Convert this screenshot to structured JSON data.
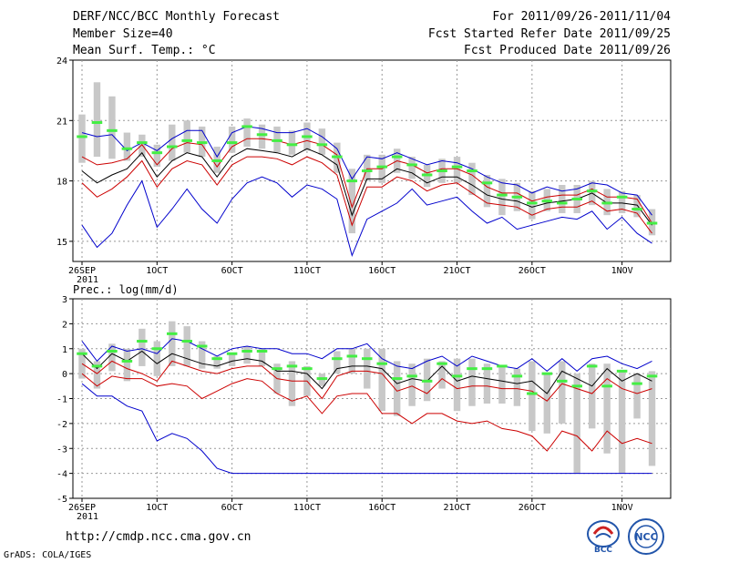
{
  "header": {
    "title": "DERF/NCC/BCC Monthly Forecast",
    "member_size": "Member Size=40",
    "variable": "Mean Surf. Temp.: °C",
    "period": "For 2011/09/26-2011/11/04",
    "start_date": "Fcst Started Refer Date 2011/09/25",
    "produced_date": "Fcst Produced Date 2011/09/26"
  },
  "footer": {
    "url": "http://cmdp.ncc.cma.gov.cn",
    "grads": "GrADS: COLA/IGES",
    "logo1_text": "BCC",
    "logo2_text": "NCC"
  },
  "colors": {
    "envelope": "#0000cc",
    "ensemble_range": "#cc0000",
    "mean": "#000000",
    "bar": "#c8c8c8",
    "marker": "#44ee44",
    "grid": "#999999"
  },
  "chart_data": [
    {
      "type": "line",
      "title": "Mean Surf. Temp.: °C",
      "ylim": [
        14,
        24
      ],
      "yticks": [
        15,
        18,
        21,
        24
      ],
      "xtick_labels": [
        "26SEP",
        "1OCT",
        "6OCT",
        "11OCT",
        "16OCT",
        "21OCT",
        "26OCT",
        "1NOV"
      ],
      "xtick_days": [
        1,
        6,
        11,
        16,
        21,
        26,
        31,
        37
      ],
      "year_label": "2011",
      "grid": true,
      "series": [
        {
          "name": "max",
          "values": [
            20.4,
            20.2,
            20.3,
            19.5,
            19.9,
            19.5,
            20.1,
            20.5,
            20.5,
            19.2,
            20.4,
            20.7,
            20.6,
            20.4,
            20.4,
            20.6,
            20.2,
            19.6,
            18.1,
            19.2,
            19.1,
            19.4,
            19.1,
            18.8,
            19.0,
            18.9,
            18.6,
            18.2,
            17.9,
            17.8,
            17.4,
            17.7,
            17.5,
            17.6,
            17.9,
            17.8,
            17.4,
            17.3,
            16.3
          ]
        },
        {
          "name": "upper",
          "values": [
            19.2,
            18.8,
            18.9,
            19.1,
            19.8,
            18.8,
            19.6,
            19.9,
            19.8,
            18.7,
            19.7,
            20.1,
            20.1,
            20.0,
            19.8,
            20.0,
            19.8,
            19.3,
            16.7,
            18.6,
            18.6,
            19.0,
            18.8,
            18.4,
            18.6,
            18.6,
            18.3,
            17.7,
            17.4,
            17.4,
            17.0,
            17.2,
            17.3,
            17.3,
            17.6,
            17.2,
            17.2,
            17.1,
            15.9
          ]
        },
        {
          "name": "mean",
          "values": [
            18.5,
            17.9,
            18.3,
            18.6,
            19.4,
            18.2,
            19.0,
            19.4,
            19.2,
            18.2,
            19.2,
            19.6,
            19.5,
            19.4,
            19.2,
            19.6,
            19.3,
            18.8,
            16.3,
            18.1,
            18.1,
            18.6,
            18.4,
            17.9,
            18.2,
            18.2,
            17.8,
            17.3,
            17.1,
            17.0,
            16.7,
            16.9,
            17.0,
            17.1,
            17.4,
            16.9,
            16.9,
            16.8,
            15.8
          ]
        },
        {
          "name": "lower",
          "values": [
            17.9,
            17.2,
            17.6,
            18.2,
            19.0,
            17.7,
            18.6,
            19.0,
            18.8,
            17.8,
            18.8,
            19.2,
            19.2,
            19.1,
            18.8,
            19.2,
            18.9,
            18.3,
            15.8,
            17.7,
            17.7,
            18.2,
            18.0,
            17.5,
            17.8,
            17.9,
            17.4,
            16.9,
            16.8,
            16.7,
            16.3,
            16.6,
            16.7,
            16.7,
            17.0,
            16.5,
            16.6,
            16.4,
            15.4
          ]
        },
        {
          "name": "min",
          "values": [
            15.8,
            14.7,
            15.4,
            16.8,
            18.0,
            15.7,
            16.6,
            17.6,
            16.6,
            15.9,
            17.1,
            17.9,
            18.2,
            17.9,
            17.2,
            17.8,
            17.6,
            17.1,
            14.3,
            16.1,
            16.5,
            16.9,
            17.6,
            16.8,
            17.0,
            17.2,
            16.5,
            15.9,
            16.2,
            15.6,
            15.8,
            16.0,
            16.2,
            16.1,
            16.5,
            15.6,
            16.2,
            15.4,
            14.9
          ]
        },
        {
          "name": "bar_top",
          "values": [
            21.3,
            22.9,
            22.2,
            20.4,
            20.3,
            19.8,
            20.8,
            21.0,
            20.7,
            19.7,
            20.7,
            21.1,
            20.8,
            20.7,
            20.5,
            20.9,
            20.6,
            19.9,
            18.6,
            19.3,
            19.3,
            19.6,
            19.2,
            18.8,
            19.1,
            19.2,
            18.9,
            18.3,
            18.1,
            17.9,
            17.5,
            17.6,
            17.8,
            17.8,
            18.0,
            17.6,
            17.5,
            17.3,
            16.6
          ]
        },
        {
          "name": "bar_bottom",
          "values": [
            18.9,
            19.2,
            19.1,
            19.0,
            19.2,
            18.7,
            19.0,
            19.4,
            19.2,
            18.4,
            19.4,
            19.7,
            19.6,
            19.4,
            19.3,
            19.5,
            19.3,
            18.4,
            15.4,
            18.0,
            17.9,
            18.4,
            18.1,
            17.7,
            17.9,
            17.9,
            17.3,
            16.7,
            16.3,
            16.5,
            16.1,
            16.5,
            16.4,
            16.4,
            16.8,
            16.3,
            16.4,
            16.2,
            15.3
          ]
        },
        {
          "name": "marker",
          "values": [
            20.2,
            20.9,
            20.5,
            19.6,
            19.9,
            19.4,
            19.7,
            20.0,
            19.9,
            19.0,
            19.9,
            20.7,
            20.3,
            20.0,
            19.8,
            20.2,
            19.8,
            19.2,
            18.0,
            18.5,
            18.7,
            19.2,
            18.8,
            18.3,
            18.5,
            18.7,
            18.5,
            17.9,
            17.3,
            17.2,
            16.9,
            17.0,
            16.9,
            17.1,
            17.5,
            16.9,
            17.2,
            16.6,
            15.9
          ]
        }
      ]
    },
    {
      "type": "line",
      "title": "Prec.: log(mm/d)",
      "ylim": [
        -5,
        3
      ],
      "yticks": [
        -5,
        -4,
        -3,
        -2,
        -1,
        0,
        1,
        2,
        3
      ],
      "xtick_labels": [
        "26SEP",
        "1OCT",
        "6OCT",
        "11OCT",
        "16OCT",
        "21OCT",
        "26OCT",
        "1NOV"
      ],
      "xtick_days": [
        1,
        6,
        11,
        16,
        21,
        26,
        31,
        37
      ],
      "year_label": "2011",
      "grid": true,
      "series": [
        {
          "name": "max",
          "values": [
            1.3,
            0.5,
            1.1,
            0.9,
            1.0,
            0.8,
            1.4,
            1.3,
            1.0,
            0.7,
            1.0,
            1.1,
            1.0,
            1.0,
            0.8,
            0.8,
            0.6,
            1.0,
            1.0,
            1.2,
            0.6,
            0.3,
            0.2,
            0.5,
            0.7,
            0.3,
            0.7,
            0.5,
            0.3,
            0.2,
            0.6,
            0.1,
            0.6,
            0.1,
            0.6,
            0.7,
            0.4,
            0.2,
            0.5
          ]
        },
        {
          "name": "mean",
          "values": [
            0.8,
            0.2,
            0.8,
            0.5,
            0.9,
            0.4,
            0.8,
            0.6,
            0.4,
            0.3,
            0.5,
            0.6,
            0.5,
            0.1,
            0.1,
            0.0,
            -0.6,
            0.2,
            0.3,
            0.3,
            0.2,
            -0.4,
            -0.2,
            -0.3,
            0.3,
            -0.3,
            -0.1,
            -0.2,
            -0.3,
            -0.4,
            -0.3,
            -0.8,
            0.1,
            -0.2,
            -0.5,
            0.2,
            -0.3,
            0.0,
            -0.3
          ]
        },
        {
          "name": "lower_red",
          "values": [
            0.4,
            0.0,
            0.5,
            0.2,
            0.0,
            -0.3,
            0.5,
            0.3,
            0.1,
            0.0,
            0.2,
            0.3,
            0.3,
            -0.2,
            -0.3,
            -0.3,
            -1.0,
            -0.1,
            0.1,
            0.1,
            0.0,
            -0.7,
            -0.5,
            -0.8,
            -0.2,
            -0.6,
            -0.5,
            -0.5,
            -0.6,
            -0.6,
            -0.7,
            -1.1,
            -0.4,
            -0.6,
            -0.8,
            -0.2,
            -0.6,
            -0.8,
            -0.6
          ]
        },
        {
          "name": "min_red",
          "values": [
            0.0,
            -0.5,
            -0.1,
            -0.2,
            -0.2,
            -0.5,
            -0.4,
            -0.5,
            -1.0,
            -0.7,
            -0.4,
            -0.2,
            -0.3,
            -0.8,
            -1.1,
            -0.9,
            -1.6,
            -0.9,
            -0.8,
            -0.8,
            -1.6,
            -1.6,
            -2.0,
            -1.6,
            -1.6,
            -1.9,
            -2.0,
            -1.9,
            -2.2,
            -2.3,
            -2.5,
            -3.1,
            -2.3,
            -2.5,
            -3.1,
            -2.3,
            -2.8,
            -2.6,
            -2.8
          ]
        },
        {
          "name": "min_blue",
          "values": [
            -0.4,
            -0.9,
            -0.9,
            -1.3,
            -1.5,
            -2.7,
            -2.4,
            -2.6,
            -3.1,
            -3.8,
            -4.0,
            -4.0,
            -4.0,
            -4.0,
            -4.0,
            -4.0,
            -4.0,
            -4.0,
            -4.0,
            -4.0,
            -4.0,
            -4.0,
            -4.0,
            -4.0,
            -4.0,
            -4.0,
            -4.0,
            -4.0,
            -4.0,
            -4.0,
            -4.0,
            -4.0,
            -4.0,
            -4.0,
            -4.0,
            -4.0,
            -4.0,
            -4.0,
            -4.0
          ]
        },
        {
          "name": "bar_top",
          "values": [
            1.0,
            0.5,
            1.2,
            1.0,
            1.8,
            1.3,
            2.1,
            1.9,
            1.3,
            0.7,
            0.8,
            1.1,
            1.0,
            0.4,
            0.5,
            0.3,
            0.0,
            0.9,
            1.0,
            1.0,
            1.0,
            0.5,
            0.4,
            0.6,
            0.5,
            0.6,
            0.6,
            0.4,
            0.3,
            0.2,
            0.5,
            0.0,
            0.5,
            0.0,
            0.4,
            0.4,
            0.1,
            0.0,
            0.1
          ]
        },
        {
          "name": "bar_bottom",
          "values": [
            -0.2,
            -0.6,
            0.1,
            -0.3,
            0.3,
            -0.1,
            0.3,
            0.3,
            0.2,
            0.2,
            0.3,
            0.4,
            0.3,
            -0.8,
            -1.3,
            -0.9,
            -0.5,
            0.0,
            0.0,
            -0.6,
            -1.5,
            -1.7,
            -1.3,
            -1.1,
            -0.6,
            -1.5,
            -1.3,
            -1.2,
            -1.2,
            -1.3,
            -2.3,
            -2.4,
            -2.0,
            -4.0,
            -2.2,
            -3.2,
            -4.0,
            -1.8,
            -3.7
          ]
        },
        {
          "name": "marker",
          "values": [
            0.8,
            0.3,
            0.9,
            0.5,
            1.3,
            1.0,
            1.6,
            1.3,
            1.1,
            0.6,
            0.8,
            0.9,
            0.9,
            0.2,
            0.3,
            0.2,
            -0.2,
            0.6,
            0.7,
            0.6,
            0.4,
            -0.2,
            -0.1,
            -0.3,
            0.4,
            -0.1,
            0.2,
            0.2,
            0.3,
            -0.1,
            -0.8,
            0.0,
            -0.3,
            -0.5,
            0.3,
            -0.5,
            0.1,
            -0.4,
            -0.1
          ]
        }
      ]
    }
  ]
}
